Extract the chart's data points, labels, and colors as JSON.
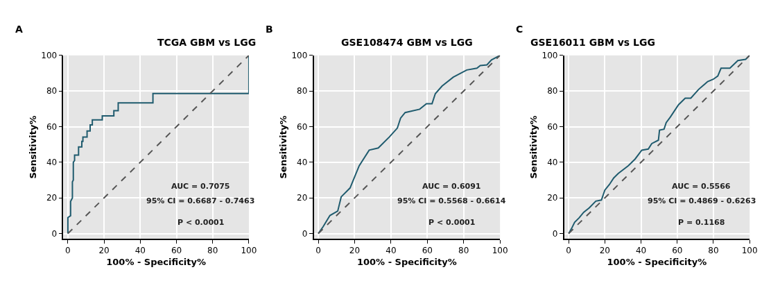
{
  "chart_data": [
    {
      "type": "line",
      "title": "TCGA GBM vs LGG",
      "xlabel": "100% - Specificity%",
      "ylabel": "Sensitivity%",
      "xlim": [
        -2.5,
        100
      ],
      "ylim": [
        -3,
        100
      ],
      "xticks": [
        0,
        20,
        40,
        60,
        80,
        100
      ],
      "yticks": [
        0,
        20,
        40,
        60,
        80,
        100
      ],
      "grid": true,
      "marker": "none",
      "annotations": [
        "A",
        "AUC = 0.7075",
        "95% CI = 0.6687 - 0.7463",
        "P < 0.0001"
      ],
      "series": [
        {
          "color": "#1f5b6e",
          "line_style": "solid",
          "x": [
            0,
            0,
            1.5,
            1.5,
            2.5,
            2.5,
            3,
            3,
            3.7,
            3.7,
            5.9,
            5.9,
            7.7,
            7.7,
            8.3,
            8.3,
            10.6,
            10.6,
            12.3,
            12.3,
            13.5,
            13.5,
            19,
            19,
            25.4,
            25.4,
            27.8,
            27.8,
            47,
            47,
            100,
            100
          ],
          "values": [
            0,
            9,
            10,
            18,
            20,
            29,
            30,
            40,
            41,
            44,
            44,
            48.6,
            48.6,
            51.7,
            51.7,
            54.2,
            54.2,
            57.6,
            57.6,
            61,
            61,
            63.8,
            63.8,
            66,
            66,
            69,
            69,
            73.3,
            73.3,
            78.6,
            78.6,
            100
          ]
        },
        {
          "color": "#555555",
          "line_style": "dashed",
          "x": [
            0,
            100
          ],
          "values": [
            0,
            100
          ]
        }
      ]
    },
    {
      "type": "line",
      "title": "GSE108474 GBM vs LGG",
      "xlabel": "100% - Specificity%",
      "ylabel": "Sensitivity%",
      "xlim": [
        -2.5,
        100
      ],
      "ylim": [
        -3,
        100
      ],
      "xticks": [
        0,
        20,
        40,
        60,
        80,
        100
      ],
      "yticks": [
        0,
        20,
        40,
        60,
        80,
        100
      ],
      "grid": true,
      "marker": "none",
      "annotations": [
        "B",
        "AUC = 0.6091",
        "95% CI = 0.5568 - 0.6614",
        "P < 0.0001"
      ],
      "series": [
        {
          "color": "#1f5b6e",
          "line_style": "solid",
          "x": [
            0,
            2.7,
            6.4,
            10.7,
            12.6,
            17.5,
            20,
            22.5,
            28,
            33,
            39.1,
            43.5,
            45.3,
            47.8,
            55.8,
            59.5,
            62.6,
            64.4,
            68.1,
            74.3,
            81.7,
            87.3,
            89.1,
            92.8,
            95.3,
            100
          ],
          "values": [
            0,
            3.9,
            10.1,
            12.6,
            20.6,
            25.6,
            31.8,
            38,
            46.8,
            48,
            54.2,
            59.2,
            64.8,
            67.9,
            69.8,
            72.9,
            72.9,
            78.5,
            82.8,
            87.8,
            91.8,
            92.8,
            94.3,
            94.7,
            97.5,
            100
          ]
        },
        {
          "color": "#555555",
          "line_style": "dashed",
          "x": [
            0,
            100
          ],
          "values": [
            0,
            100
          ]
        }
      ]
    },
    {
      "type": "line",
      "title": "GSE16011 GBM vs LGG",
      "xlabel": "100% - Specificity%",
      "ylabel": "Sensitivity%",
      "xlim": [
        -2.5,
        100
      ],
      "ylim": [
        -3,
        100
      ],
      "xticks": [
        0,
        20,
        40,
        60,
        80,
        100
      ],
      "yticks": [
        0,
        20,
        40,
        60,
        80,
        100
      ],
      "grid": true,
      "marker": "none",
      "annotations": [
        "C",
        "AUC = 0.5566",
        "95% CI = 0.4869 - 0.6263",
        "P = 0.1168"
      ],
      "series": [
        {
          "color": "#1f5b6e",
          "line_style": "solid",
          "x": [
            0,
            1.5,
            3.3,
            5.8,
            8.3,
            11.4,
            15,
            18.1,
            20,
            22.5,
            24.9,
            27.4,
            33,
            36.7,
            40.4,
            44,
            45.9,
            49.6,
            50.2,
            52.7,
            53.9,
            56.2,
            60.7,
            64.4,
            67.5,
            71.9,
            76.8,
            79.9,
            82.4,
            84.2,
            89.1,
            93.5,
            97.8,
            100
          ],
          "values": [
            0,
            2.6,
            6.3,
            8.8,
            11.9,
            14.4,
            18.2,
            18.8,
            24.4,
            27.5,
            31.2,
            33.7,
            38.1,
            41.8,
            46.8,
            47.4,
            50.5,
            52.4,
            58,
            58.6,
            62.3,
            65.4,
            72.3,
            76,
            76,
            81,
            85.3,
            86.6,
            88.4,
            92.8,
            92.8,
            97.1,
            97.8,
            100
          ]
        },
        {
          "color": "#555555",
          "line_style": "dashed",
          "x": [
            0,
            100
          ],
          "values": [
            0,
            100
          ]
        }
      ]
    }
  ]
}
